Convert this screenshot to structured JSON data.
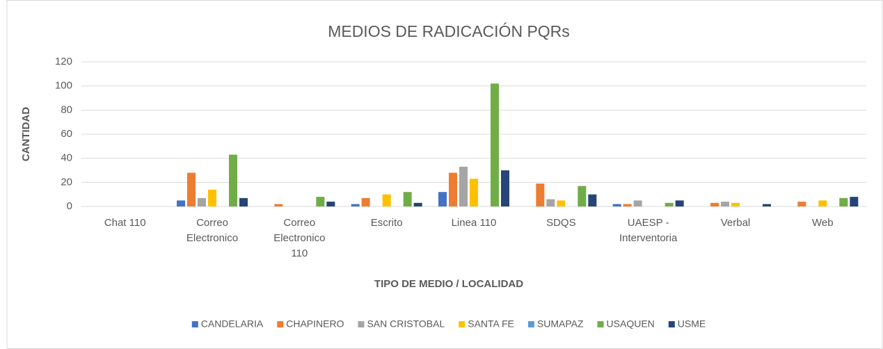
{
  "chart_data": {
    "type": "bar",
    "title": "MEDIOS DE RADICACIÓN PQRs",
    "x_label": "TIPO DE MEDIO / LOCALIDAD",
    "y_label": "CANTIDAD",
    "categories": [
      "Chat 110",
      "Correo Electronico",
      "Correo Electronico 110",
      "Escrito",
      "Linea 110",
      "SDQS",
      "UAESP - Interventoria",
      "Verbal",
      "Web"
    ],
    "series": [
      {
        "name": "CANDELARIA",
        "color": "#4472c4",
        "values": [
          0,
          5,
          0,
          2,
          12,
          0,
          2,
          0,
          0
        ]
      },
      {
        "name": "CHAPINERO",
        "color": "#ed7d31",
        "values": [
          0,
          28,
          2,
          7,
          28,
          19,
          2,
          3,
          4
        ]
      },
      {
        "name": "SAN CRISTOBAL",
        "color": "#a5a5a5",
        "values": [
          0,
          7,
          0,
          0,
          33,
          6,
          5,
          4,
          0
        ]
      },
      {
        "name": "SANTA FE",
        "color": "#ffc000",
        "values": [
          0,
          14,
          0,
          10,
          23,
          5,
          0,
          3,
          5
        ]
      },
      {
        "name": "SUMAPAZ",
        "color": "#5b9bd5",
        "values": [
          0,
          0,
          0,
          0,
          0,
          0,
          0,
          0,
          0
        ]
      },
      {
        "name": "USAQUEN",
        "color": "#70ad47",
        "values": [
          0,
          43,
          8,
          12,
          102,
          17,
          3,
          0,
          7
        ]
      },
      {
        "name": "USME",
        "color": "#264478",
        "values": [
          0,
          7,
          4,
          3,
          30,
          10,
          5,
          2,
          8
        ]
      }
    ],
    "ylim": [
      0,
      120
    ],
    "yticks": [
      0,
      20,
      40,
      60,
      80,
      100,
      120
    ],
    "grid": true,
    "legend": "bottom"
  }
}
